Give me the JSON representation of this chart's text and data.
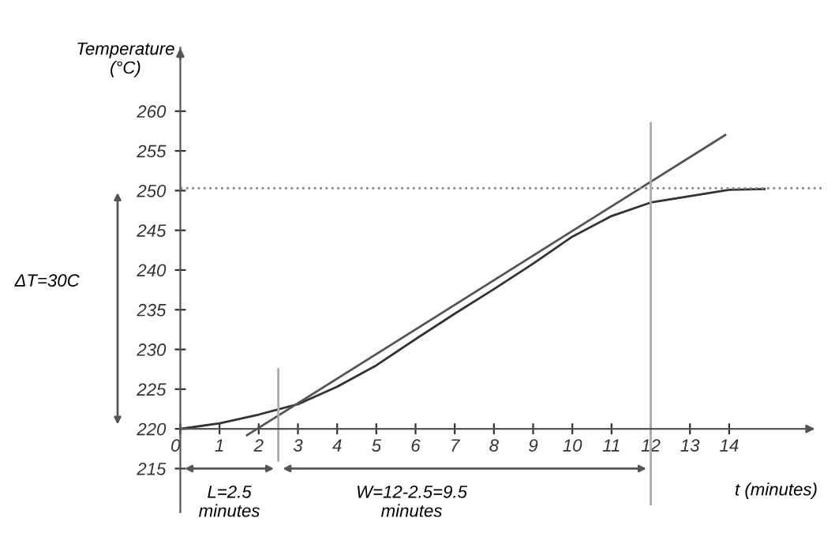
{
  "chart_data": {
    "type": "line",
    "xlabel": "t (minutes)",
    "ylabel": "Temperature\n(°C)",
    "xlim": [
      -4.6,
      16.7
    ],
    "ylim": [
      205,
      274
    ],
    "xticks": [
      0,
      1,
      2,
      3,
      4,
      5,
      6,
      7,
      8,
      9,
      10,
      11,
      12,
      13,
      14
    ],
    "yticks": [
      215,
      220,
      225,
      230,
      235,
      240,
      245,
      250,
      255,
      260
    ],
    "series": [
      {
        "color": "#333333",
        "line_style": "solid",
        "x": [
          0,
          1,
          2,
          3,
          4,
          5,
          6,
          7,
          8,
          9,
          10,
          11,
          12,
          13,
          14,
          14.9
        ],
        "values": [
          220,
          220.7,
          221.8,
          223.1,
          225.3,
          228,
          231.3,
          234.5,
          237.6,
          240.8,
          244.2,
          246.8,
          248.5,
          249.3,
          250.1,
          250.2
        ]
      },
      {
        "color": "#555555",
        "line_style": "solid",
        "x": [
          1.7,
          13.9
        ],
        "values": [
          219.2,
          257
        ]
      }
    ],
    "ref_lines": [
      {
        "axis": "y",
        "value": 250.3,
        "color": "#888888",
        "line_style": "dotted"
      },
      {
        "axis": "x",
        "value": 2.5,
        "color": "#aaaaaa",
        "line_style": "solid"
      },
      {
        "axis": "x",
        "value": 12,
        "color": "#aaaaaa",
        "line_style": "solid"
      }
    ],
    "annotations": [
      "ΔT=30C",
      "L=2.5\nminutes",
      "W=12-2.5=9.5\nminutes"
    ],
    "grid": false,
    "legend": false
  }
}
